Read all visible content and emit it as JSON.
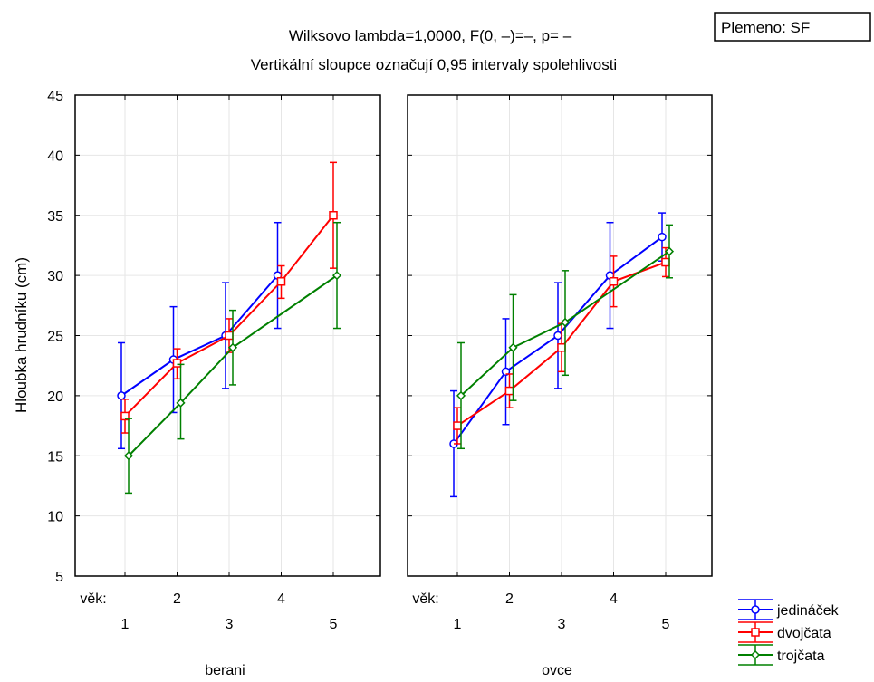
{
  "chart_data": {
    "type": "line",
    "title": "Wilksovo lambda=1,0000, F(0, –)=–, p=  –",
    "subtitle": "Vertikální sloupce označují 0,95 intervaly spolehlivosti",
    "box_label": "Plemeno: SF",
    "ylabel": "Hloubka hrudníku (cm)",
    "ylim": [
      5,
      45
    ],
    "yticks": [
      "5",
      "10",
      "15",
      "20",
      "25",
      "30",
      "35",
      "40",
      "45"
    ],
    "x_prefix": "věk:",
    "x_categories": [
      "1",
      "2",
      "3",
      "4",
      "5"
    ],
    "grid": true,
    "legend_position": "bottom-right",
    "series": [
      {
        "name": "jedináček",
        "color": "#0000ff",
        "marker": "circle"
      },
      {
        "name": "dvojčata",
        "color": "#ff0000",
        "marker": "square"
      },
      {
        "name": "trojčata",
        "color": "#008000",
        "marker": "diamond"
      }
    ],
    "panels": [
      {
        "label": "berani",
        "data": [
          {
            "series": "jedináček",
            "x": [
              1,
              2,
              3,
              4
            ],
            "y": [
              20.0,
              23.0,
              25.0,
              30.0
            ],
            "lower": [
              15.6,
              18.6,
              20.6,
              25.6
            ],
            "upper": [
              24.4,
              27.4,
              29.4,
              34.4
            ]
          },
          {
            "series": "dvojčata",
            "x": [
              1,
              2,
              3,
              4,
              5
            ],
            "y": [
              18.3,
              22.7,
              25.0,
              29.5,
              35.0
            ],
            "lower": [
              16.9,
              21.4,
              23.6,
              28.1,
              30.6
            ],
            "upper": [
              19.7,
              23.9,
              26.4,
              30.8,
              39.4
            ]
          },
          {
            "series": "trojčata",
            "x": [
              1,
              2,
              3,
              5
            ],
            "y": [
              15.0,
              19.4,
              24.0,
              30.0
            ],
            "lower": [
              11.9,
              16.4,
              20.9,
              25.6
            ],
            "upper": [
              18.1,
              22.6,
              27.1,
              34.4
            ]
          }
        ]
      },
      {
        "label": "ovce",
        "data": [
          {
            "series": "jedináček",
            "x": [
              1,
              2,
              3,
              4,
              5
            ],
            "y": [
              16.0,
              22.0,
              25.0,
              30.0,
              33.2
            ],
            "lower": [
              11.6,
              17.6,
              20.6,
              25.6,
              31.2
            ],
            "upper": [
              20.4,
              26.4,
              29.4,
              34.4,
              35.2
            ]
          },
          {
            "series": "dvojčata",
            "x": [
              1,
              2,
              3,
              4,
              5
            ],
            "y": [
              17.5,
              20.4,
              24.0,
              29.5,
              31.1
            ],
            "lower": [
              16.0,
              19.0,
              22.0,
              27.4,
              29.9
            ],
            "upper": [
              19.0,
              21.8,
              26.0,
              31.6,
              32.3
            ]
          },
          {
            "series": "trojčata",
            "x": [
              1,
              2,
              3,
              5
            ],
            "y": [
              20.0,
              24.0,
              26.1,
              32.0
            ],
            "lower": [
              15.6,
              19.6,
              21.7,
              29.8
            ],
            "upper": [
              24.4,
              28.4,
              30.4,
              34.2
            ]
          }
        ]
      }
    ]
  }
}
